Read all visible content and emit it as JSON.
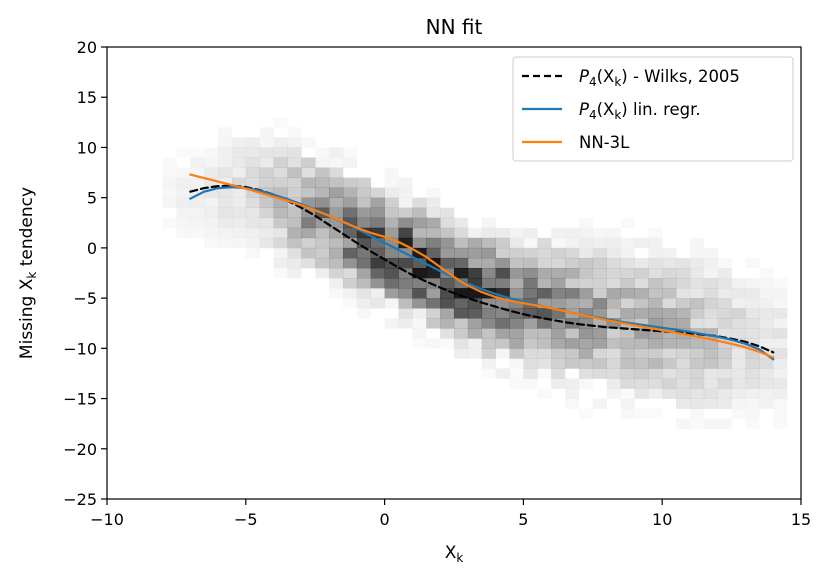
{
  "chart_data": {
    "type": "line",
    "title": "NN fit",
    "xlabel_main": "X",
    "xlabel_sub": "k",
    "ylabel_pre": "Missing X",
    "ylabel_sub": "k",
    "ylabel_post": " tendency",
    "xlim": [
      -10,
      15
    ],
    "ylim": [
      -25,
      20
    ],
    "xticks": [
      -10,
      -5,
      0,
      5,
      10,
      15
    ],
    "yticks": [
      20,
      15,
      10,
      5,
      0,
      -5,
      -10,
      -15,
      -20,
      -25
    ],
    "xtick_labels": [
      "−10",
      "−5",
      "0",
      "5",
      "10",
      "15"
    ],
    "ytick_labels": [
      "20",
      "15",
      "10",
      "5",
      "0",
      "−5",
      "−10",
      "−15",
      "−20",
      "−25"
    ],
    "grid": false,
    "legend_position": "top-right",
    "colors": {
      "wilks": "#000000",
      "linreg": "#1f77b4",
      "nn": "#ff7f0e",
      "hist_base": "#000000"
    },
    "series": [
      {
        "key": "wilks",
        "name": "P4(Xk) - Wilks, 2005",
        "legend_main": "P",
        "legend_sub_a": "4",
        "legend_paren_open": "(X",
        "legend_sub_b": "k",
        "legend_paren_close": ")",
        "legend_suffix": " - Wilks, 2005",
        "style": "dashed",
        "x": [
          -7,
          -6.5,
          -6,
          -5.5,
          -5,
          -4.5,
          -4,
          -3.5,
          -3,
          -2.5,
          -2,
          -1.5,
          -1,
          -0.5,
          0,
          0.5,
          1,
          1.5,
          2,
          2.5,
          3,
          3.5,
          4,
          4.5,
          5,
          5.5,
          6,
          6.5,
          7,
          7.5,
          8,
          8.5,
          9,
          9.5,
          10,
          10.5,
          11,
          11.5,
          12,
          12.5,
          13,
          13.5,
          14
        ],
        "y": [
          5.6,
          5.95,
          6.15,
          6.2,
          6.05,
          5.75,
          5.3,
          4.7,
          4.0,
          3.2,
          2.3,
          1.4,
          0.5,
          -0.35,
          -1.15,
          -1.95,
          -2.7,
          -3.35,
          -3.95,
          -4.5,
          -5.0,
          -5.45,
          -5.85,
          -6.25,
          -6.6,
          -6.9,
          -7.15,
          -7.4,
          -7.6,
          -7.75,
          -7.9,
          -8.0,
          -8.1,
          -8.2,
          -8.3,
          -8.4,
          -8.5,
          -8.65,
          -8.8,
          -9.05,
          -9.35,
          -9.8,
          -10.4
        ]
      },
      {
        "key": "linreg",
        "name": "P4(Xk) lin. regr.",
        "legend_main": "P",
        "legend_sub_a": "4",
        "legend_paren_open": "(X",
        "legend_sub_b": "k",
        "legend_paren_close": ")",
        "legend_suffix": " lin. regr.",
        "style": "solid",
        "x": [
          -7,
          -6.5,
          -6,
          -5.5,
          -5,
          -4.5,
          -4,
          -3.5,
          -3,
          -2.5,
          -2,
          -1.5,
          -1,
          -0.5,
          0,
          0.5,
          1,
          1.5,
          2,
          2.5,
          3,
          3.5,
          4,
          4.5,
          5,
          5.5,
          6,
          6.5,
          7,
          7.5,
          8,
          8.5,
          9,
          9.5,
          10,
          10.5,
          11,
          11.5,
          12,
          12.5,
          13,
          13.5,
          14
        ],
        "y": [
          4.9,
          5.6,
          5.95,
          6.05,
          5.95,
          5.7,
          5.3,
          4.85,
          4.35,
          3.8,
          3.2,
          2.55,
          1.9,
          1.2,
          0.5,
          -0.2,
          -0.9,
          -1.6,
          -2.3,
          -2.95,
          -3.55,
          -4.1,
          -4.6,
          -5.0,
          -5.35,
          -5.7,
          -6.0,
          -6.3,
          -6.6,
          -6.85,
          -7.1,
          -7.35,
          -7.55,
          -7.75,
          -7.95,
          -8.15,
          -8.35,
          -8.6,
          -8.85,
          -9.15,
          -9.55,
          -10.1,
          -11.1
        ]
      },
      {
        "key": "nn",
        "name": "NN-3L",
        "legend_main": "NN-3L",
        "style": "solid",
        "x": [
          -7,
          -6.5,
          -6,
          -5.5,
          -5,
          -4.5,
          -4,
          -3.5,
          -3,
          -2.5,
          -2,
          -1.5,
          -1,
          -0.5,
          0,
          0.5,
          1,
          1.5,
          2,
          2.5,
          3,
          3.5,
          4,
          4.5,
          5,
          5.5,
          6,
          6.5,
          7,
          7.5,
          8,
          8.5,
          9,
          9.5,
          10,
          10.5,
          11,
          11.5,
          12,
          12.5,
          13,
          13.5,
          14
        ],
        "y": [
          7.3,
          6.95,
          6.6,
          6.25,
          5.9,
          5.5,
          5.1,
          4.7,
          4.25,
          3.75,
          3.2,
          2.6,
          2.0,
          1.5,
          1.1,
          0.6,
          -0.1,
          -0.9,
          -1.9,
          -2.9,
          -3.75,
          -4.4,
          -4.9,
          -5.25,
          -5.5,
          -5.75,
          -6.0,
          -6.3,
          -6.6,
          -6.9,
          -7.2,
          -7.45,
          -7.7,
          -7.95,
          -8.2,
          -8.45,
          -8.7,
          -8.95,
          -9.25,
          -9.55,
          -9.9,
          -10.35,
          -10.9
        ]
      }
    ],
    "histogram": {
      "description_values": "2D density of samples",
      "x_bin_width": 0.5,
      "y_bin_width": 1.0,
      "x_range": [
        -8,
        14.5
      ],
      "y_range": [
        -23,
        17
      ],
      "trend": [
        {
          "x": -8,
          "y": 5.5,
          "spread": 3.5,
          "density": 0.03
        },
        {
          "x": -6,
          "y": 6.0,
          "spread": 3.5,
          "density": 0.08
        },
        {
          "x": -4,
          "y": 5.0,
          "spread": 3.5,
          "density": 0.2
        },
        {
          "x": -2,
          "y": 3.0,
          "spread": 3.2,
          "density": 0.55
        },
        {
          "x": 0,
          "y": 0.0,
          "spread": 3.0,
          "density": 0.75
        },
        {
          "x": 2,
          "y": -2.5,
          "spread": 3.0,
          "density": 0.85
        },
        {
          "x": 3,
          "y": -4.0,
          "spread": 3.0,
          "density": 0.9
        },
        {
          "x": 5,
          "y": -5.5,
          "spread": 3.5,
          "density": 0.55
        },
        {
          "x": 8,
          "y": -7.0,
          "spread": 4.0,
          "density": 0.35
        },
        {
          "x": 11,
          "y": -8.5,
          "spread": 4.5,
          "density": 0.25
        },
        {
          "x": 14,
          "y": -10.0,
          "spread": 4.0,
          "density": 0.1
        }
      ]
    }
  }
}
